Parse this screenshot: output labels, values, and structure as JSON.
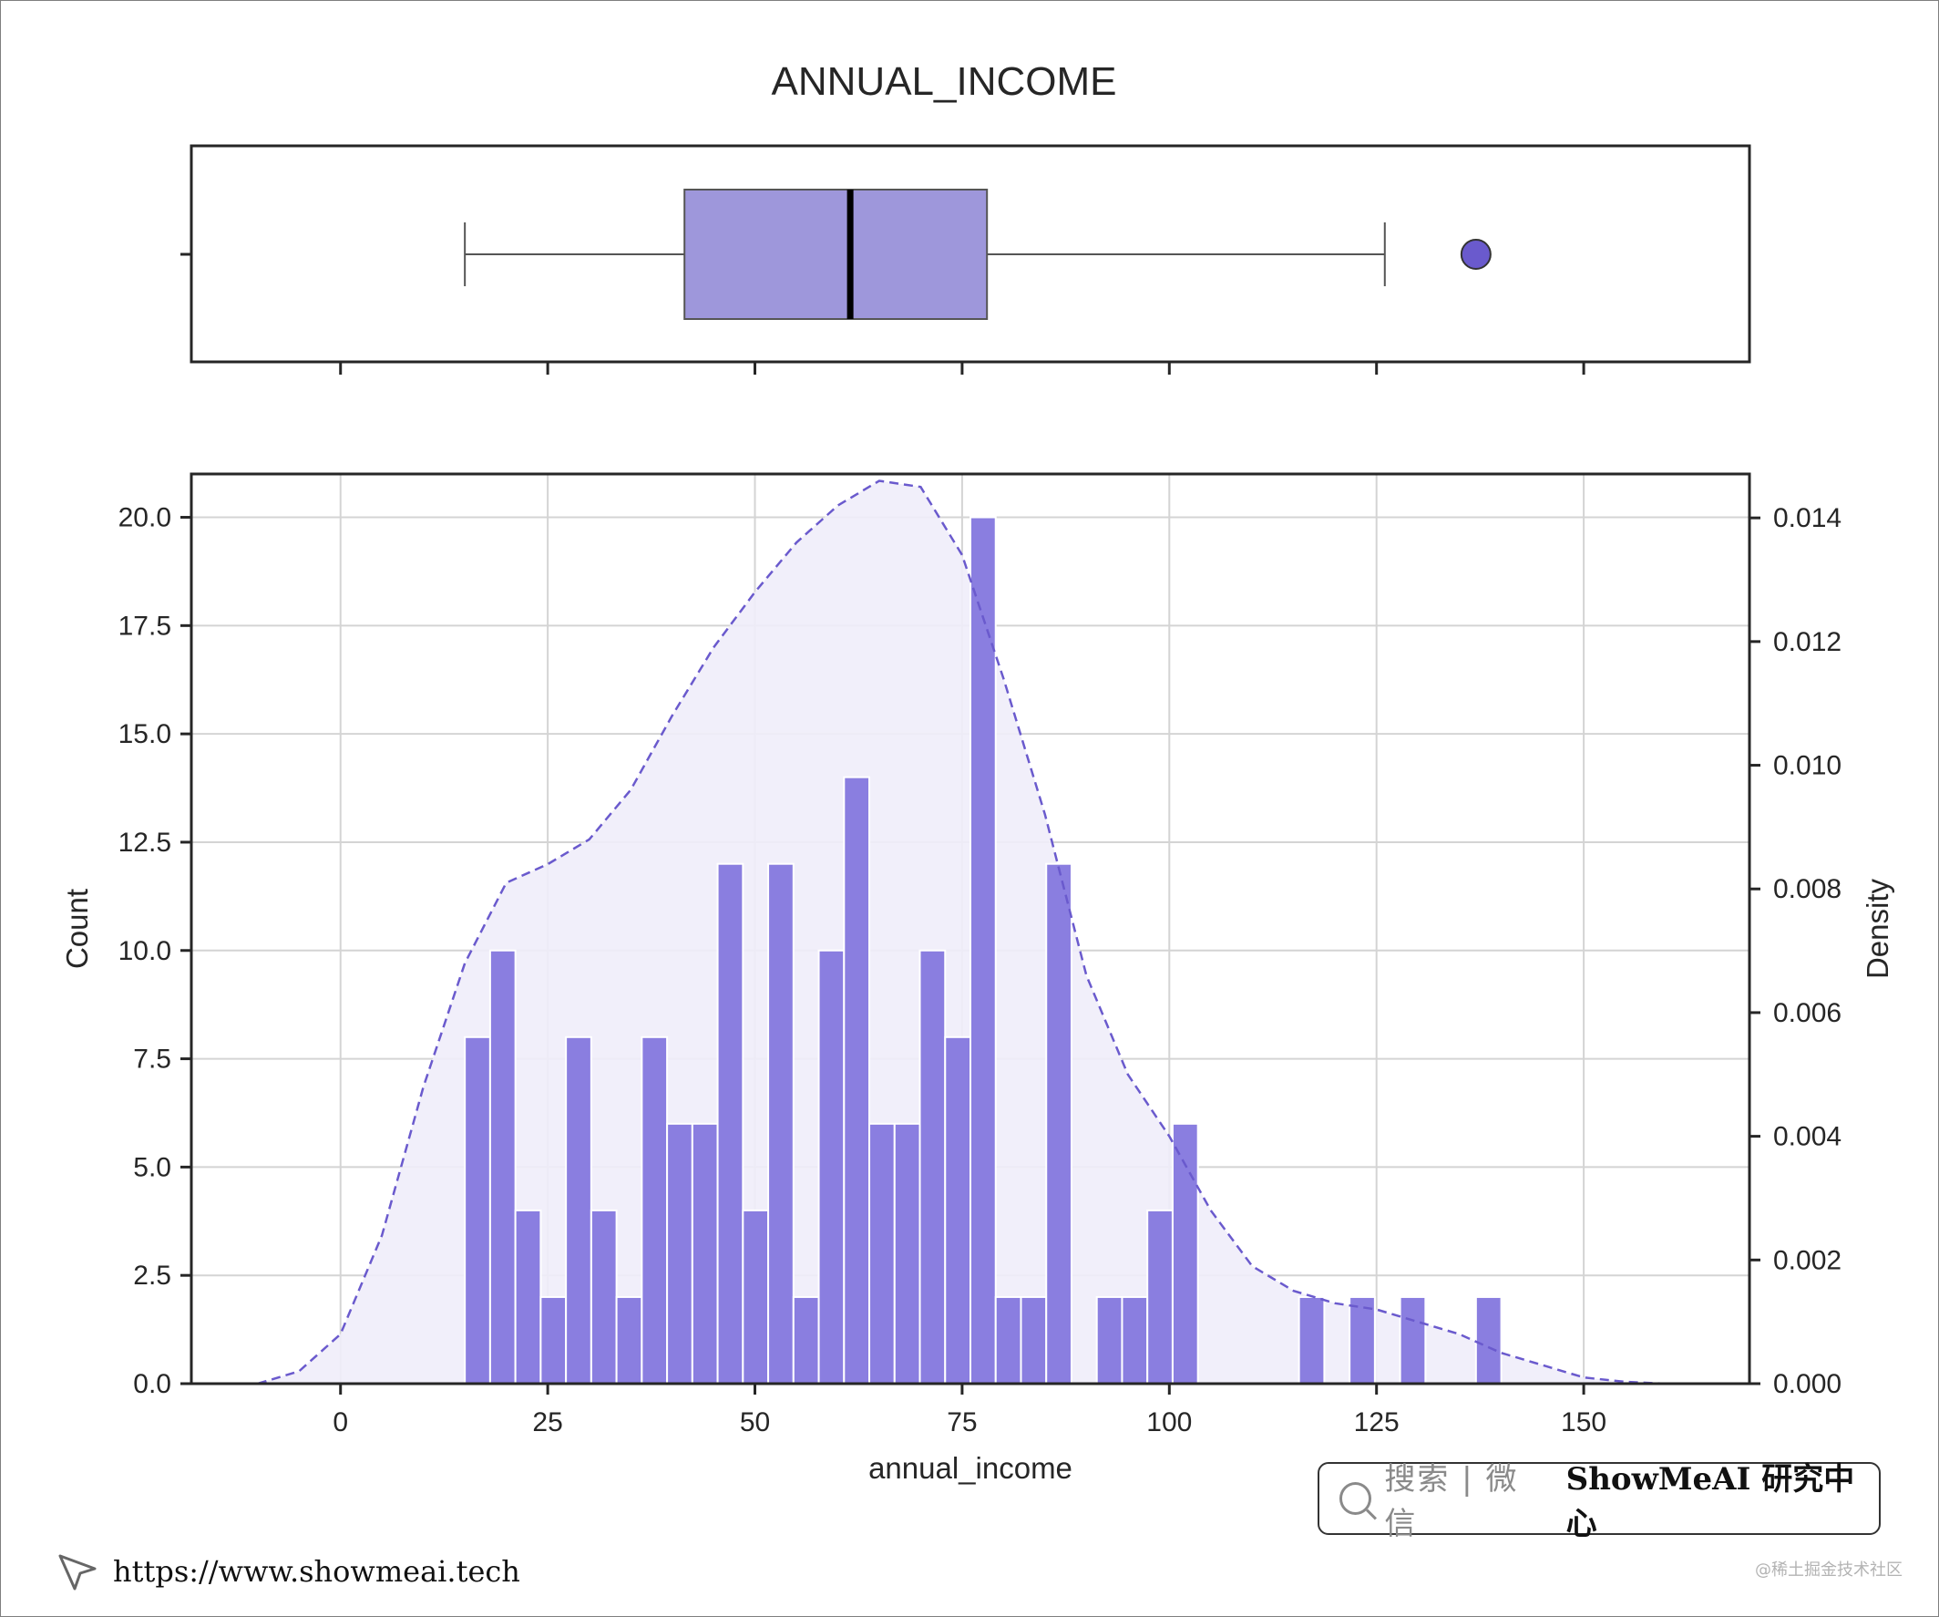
{
  "colors": {
    "bar_fill": "#8a7ee0",
    "box_fill": "#9e97db",
    "kde_line": "#6a5acd",
    "kde_fill": "#efedfa",
    "outlier_fill": "#6a5acd",
    "grid": "#d4d4d4",
    "axis": "#262626"
  },
  "chart_data": [
    {
      "type": "box",
      "title": "ANNUAL_INCOME",
      "xlim": [
        -18,
        170
      ],
      "xticks": [
        0,
        25,
        50,
        75,
        100,
        125,
        150
      ],
      "stats": {
        "whisker_low": 15,
        "q1": 41.5,
        "median": 61.5,
        "q3": 78,
        "whisker_high": 126
      },
      "outliers": [
        137
      ]
    },
    {
      "type": "bar",
      "xlabel": "annual_income",
      "ylabel": "Count",
      "y2label": "Density",
      "xlim": [
        -18,
        170
      ],
      "ylim": [
        0,
        21
      ],
      "y2lim": [
        0,
        0.01471
      ],
      "xticks": [
        0,
        25,
        50,
        75,
        100,
        125,
        150
      ],
      "xtick_labels": [
        "0",
        "25",
        "50",
        "75",
        "100",
        "125",
        "150"
      ],
      "yticks": [
        0,
        2.5,
        5,
        7.5,
        10,
        12.5,
        15,
        17.5,
        20
      ],
      "ytick_labels": [
        "0.0",
        "2.5",
        "5.0",
        "7.5",
        "10.0",
        "12.5",
        "15.0",
        "17.5",
        "20.0"
      ],
      "y2ticks": [
        0,
        0.002,
        0.004,
        0.006,
        0.008,
        0.01,
        0.012,
        0.014
      ],
      "y2tick_labels": [
        "0.000",
        "0.002",
        "0.004",
        "0.006",
        "0.008",
        "0.010",
        "0.012",
        "0.014"
      ],
      "grid": true,
      "bin_start": 15,
      "bin_width": 3.05,
      "counts": [
        8,
        10,
        4,
        2,
        8,
        4,
        2,
        8,
        6,
        6,
        12,
        4,
        12,
        2,
        10,
        14,
        6,
        6,
        10,
        8,
        20,
        2,
        2,
        12,
        0,
        2,
        2,
        4,
        6,
        0,
        0,
        0,
        0,
        2,
        0,
        2,
        0,
        2,
        0,
        0,
        2
      ],
      "kde": {
        "x": [
          -10,
          -5,
          0,
          5,
          10,
          15,
          20,
          25,
          30,
          35,
          40,
          45,
          50,
          55,
          60,
          65,
          70,
          75,
          80,
          85,
          90,
          95,
          100,
          105,
          110,
          115,
          120,
          125,
          130,
          135,
          140,
          145,
          150,
          155,
          160
        ],
        "y": [
          0.0,
          0.0002,
          0.0008,
          0.0024,
          0.0048,
          0.0068,
          0.0081,
          0.0084,
          0.0088,
          0.0096,
          0.0108,
          0.0119,
          0.0128,
          0.0136,
          0.0142,
          0.0146,
          0.0145,
          0.0134,
          0.0114,
          0.0092,
          0.0066,
          0.005,
          0.004,
          0.0028,
          0.0019,
          0.0015,
          0.0013,
          0.0012,
          0.001,
          0.0008,
          0.0005,
          0.0003,
          0.0001,
          3e-05,
          0.0
        ]
      }
    }
  ],
  "badge": {
    "search_text": "搜索 | 微信",
    "brand_text": "ShowMeAI 研究中心"
  },
  "footer": {
    "url": "https://www.showmeai.tech"
  },
  "watermark": "@稀土掘金技术社区"
}
